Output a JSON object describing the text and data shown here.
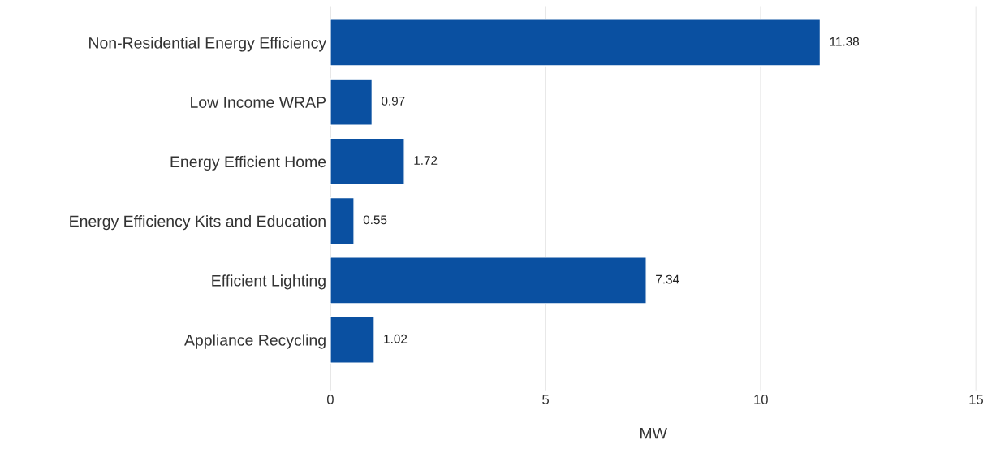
{
  "chart_data": {
    "type": "bar",
    "orientation": "horizontal",
    "categories": [
      "Non-Residential Energy Efficiency",
      "Low Income WRAP",
      "Energy Efficient Home",
      "Energy Efficiency Kits and Education",
      "Efficient Lighting",
      "Appliance Recycling"
    ],
    "values": [
      11.38,
      0.97,
      1.72,
      0.55,
      7.34,
      1.02
    ],
    "color": "#0a50a1",
    "xlabel": "MW",
    "xlim": [
      0,
      15
    ],
    "xticks": [
      0,
      5,
      10,
      15
    ],
    "grid": "x",
    "data_labels": true
  }
}
